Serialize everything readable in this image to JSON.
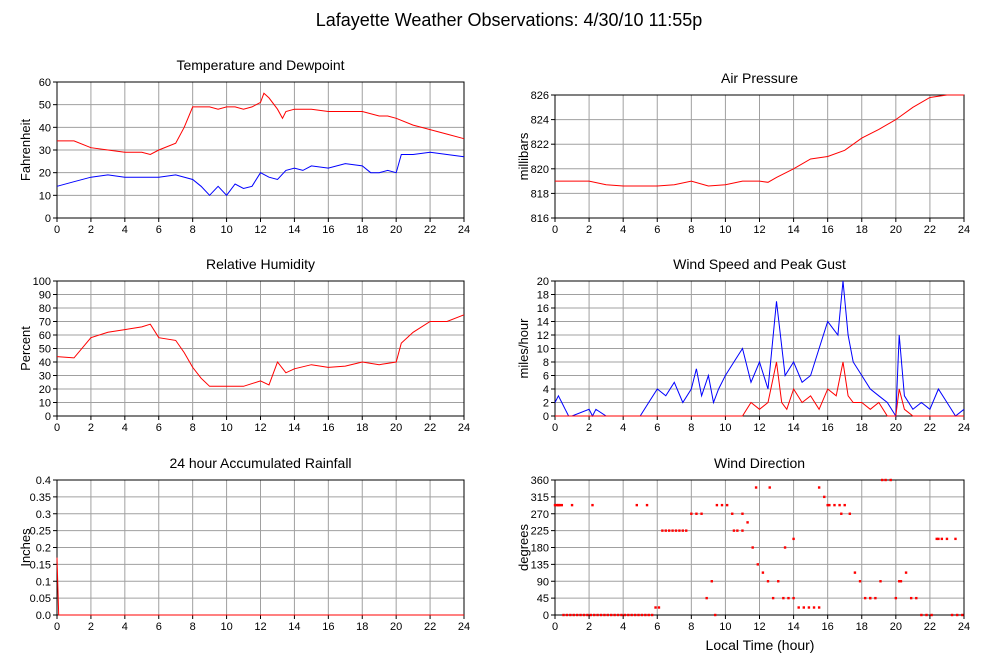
{
  "page": {
    "title": "Lafayette Weather Observations: 4/30/10 11:55p",
    "xlabel": "Local Time (hour)"
  },
  "colors": {
    "red": "#ff0000",
    "blue": "#0000ff",
    "grid": "#a0a0a0",
    "axis": "#000000"
  },
  "chart_data": [
    {
      "type": "line",
      "title": "Temperature and Dewpoint",
      "ylabel": "Fahrenheit",
      "xlim": [
        0,
        24
      ],
      "ylim": [
        0,
        60
      ],
      "xticks": [
        0,
        2,
        4,
        6,
        8,
        10,
        12,
        14,
        16,
        18,
        20,
        22,
        24
      ],
      "yticks": [
        0,
        10,
        20,
        30,
        40,
        50,
        60
      ],
      "grid": true,
      "series": [
        {
          "color": "#ff0000",
          "x": [
            0,
            1,
            2,
            3,
            4,
            5,
            5.5,
            6,
            7,
            7.5,
            8,
            8.5,
            9,
            9.5,
            10,
            10.5,
            11,
            11.5,
            12,
            12.2,
            12.5,
            13,
            13.3,
            13.5,
            14,
            15,
            16,
            17,
            18,
            19,
            19.5,
            20,
            21,
            22,
            23,
            24
          ],
          "y": [
            34,
            34,
            31,
            30,
            29,
            29,
            28,
            30,
            33,
            40,
            49,
            49,
            49,
            48,
            49,
            49,
            48,
            49,
            51,
            55,
            53,
            48,
            44,
            47,
            48,
            48,
            47,
            47,
            47,
            45,
            45,
            44,
            41,
            39,
            37,
            35
          ]
        },
        {
          "color": "#0000ff",
          "x": [
            0,
            1,
            2,
            3,
            4,
            5,
            6,
            7,
            8,
            8.5,
            9,
            9.5,
            10,
            10.5,
            11,
            11.5,
            12,
            12.5,
            13,
            13.5,
            14,
            14.5,
            15,
            16,
            17,
            18,
            18.5,
            19,
            19.5,
            20,
            20.3,
            21,
            22,
            23,
            24
          ],
          "y": [
            14,
            16,
            18,
            19,
            18,
            18,
            18,
            19,
            17,
            14,
            10,
            14,
            10,
            15,
            13,
            14,
            20,
            18,
            17,
            21,
            22,
            21,
            23,
            22,
            24,
            23,
            20,
            20,
            21,
            20,
            28,
            28,
            29,
            28,
            27
          ]
        }
      ]
    },
    {
      "type": "line",
      "title": "Air Pressure",
      "ylabel": "millibars",
      "xlim": [
        0,
        24
      ],
      "ylim": [
        816,
        826
      ],
      "xticks": [
        0,
        2,
        4,
        6,
        8,
        10,
        12,
        14,
        16,
        18,
        20,
        22,
        24
      ],
      "yticks": [
        816,
        818,
        820,
        822,
        824,
        826
      ],
      "grid": true,
      "series": [
        {
          "color": "#ff0000",
          "x": [
            0,
            2,
            3,
            4,
            6,
            7,
            8,
            9,
            10,
            11,
            12,
            12.5,
            13,
            14,
            15,
            16,
            17,
            18,
            19,
            20,
            21,
            22,
            23,
            24
          ],
          "y": [
            819,
            819,
            818.7,
            818.6,
            818.6,
            818.7,
            819,
            818.6,
            818.7,
            819,
            819,
            818.9,
            819.3,
            820,
            820.8,
            821,
            821.5,
            822.5,
            823.2,
            824,
            825,
            825.8,
            826,
            826
          ]
        }
      ]
    },
    {
      "type": "line",
      "title": "Relative Humidity",
      "ylabel": "Percent",
      "xlim": [
        0,
        24
      ],
      "ylim": [
        0,
        100
      ],
      "xticks": [
        0,
        2,
        4,
        6,
        8,
        10,
        12,
        14,
        16,
        18,
        20,
        22,
        24
      ],
      "yticks": [
        0,
        10,
        20,
        30,
        40,
        50,
        60,
        70,
        80,
        90,
        100
      ],
      "grid": true,
      "series": [
        {
          "color": "#ff0000",
          "x": [
            0,
            1,
            2,
            3,
            4,
            5,
            5.5,
            6,
            7,
            7.5,
            8,
            8.5,
            9,
            10,
            11,
            12,
            12.5,
            13,
            13.5,
            14,
            15,
            16,
            17,
            18,
            19,
            20,
            20.3,
            21,
            22,
            23,
            24
          ],
          "y": [
            44,
            43,
            58,
            62,
            64,
            66,
            68,
            58,
            56,
            47,
            36,
            28,
            22,
            22,
            22,
            26,
            23,
            40,
            32,
            35,
            38,
            36,
            37,
            40,
            38,
            40,
            54,
            62,
            70,
            70,
            75
          ]
        }
      ]
    },
    {
      "type": "line",
      "title": "Wind Speed and Peak Gust",
      "ylabel": "miles/hour",
      "xlim": [
        0,
        24
      ],
      "ylim": [
        0,
        20
      ],
      "xticks": [
        0,
        2,
        4,
        6,
        8,
        10,
        12,
        14,
        16,
        18,
        20,
        22,
        24
      ],
      "yticks": [
        0,
        2,
        4,
        6,
        8,
        10,
        12,
        14,
        16,
        18,
        20
      ],
      "grid": true,
      "series": [
        {
          "color": "#0000ff",
          "x": [
            0,
            0.2,
            0.4,
            0.6,
            0.8,
            1,
            2,
            2.2,
            2.4,
            3,
            4,
            5,
            5.5,
            6,
            6.5,
            7,
            7.5,
            8,
            8.3,
            8.6,
            9,
            9.3,
            9.6,
            10,
            10.5,
            11,
            11.5,
            12,
            12.5,
            13,
            13.5,
            14,
            14.5,
            15,
            15.5,
            16,
            16.3,
            16.6,
            16.9,
            17.2,
            17.5,
            18,
            18.5,
            19,
            19.5,
            20,
            20.2,
            20.5,
            21,
            21.5,
            22,
            22.5,
            23,
            23.5,
            24
          ],
          "y": [
            2,
            3,
            2,
            1,
            0,
            0,
            1,
            0,
            1,
            0,
            0,
            0,
            2,
            4,
            3,
            5,
            2,
            4,
            7,
            3,
            6,
            2,
            4,
            6,
            8,
            10,
            5,
            8,
            4,
            17,
            6,
            8,
            5,
            6,
            10,
            14,
            13,
            12,
            20,
            12,
            8,
            6,
            4,
            3,
            2,
            0,
            12,
            3,
            1,
            2,
            1,
            4,
            2,
            0,
            1
          ]
        },
        {
          "color": "#ff0000",
          "x": [
            0,
            11,
            11.5,
            12,
            12.5,
            13,
            13.3,
            13.6,
            14,
            14.5,
            15,
            15.5,
            16,
            16.5,
            16.9,
            17.2,
            17.5,
            18,
            18.5,
            19,
            19.5,
            20,
            20.2,
            20.5,
            21,
            24
          ],
          "y": [
            0,
            0,
            2,
            1,
            2,
            8,
            2,
            1,
            4,
            2,
            3,
            1,
            4,
            3,
            8,
            3,
            2,
            2,
            1,
            2,
            0,
            0,
            4,
            1,
            0,
            0
          ]
        }
      ]
    },
    {
      "type": "line",
      "title": "24 hour Accumulated Rainfall",
      "ylabel": "Inches",
      "xlim": [
        0,
        24
      ],
      "ylim": [
        0,
        0.4
      ],
      "xticks": [
        0,
        2,
        4,
        6,
        8,
        10,
        12,
        14,
        16,
        18,
        20,
        22,
        24
      ],
      "yticks": [
        "0.0",
        "0.05",
        "0.1",
        "0.15",
        "0.2",
        "0.25",
        "0.3",
        "0.35",
        "0.4"
      ],
      "ytickvals": [
        0,
        0.05,
        0.1,
        0.15,
        0.2,
        0.25,
        0.3,
        0.35,
        0.4
      ],
      "grid": true,
      "series": [
        {
          "color": "#ff0000",
          "x": [
            0,
            0.1,
            24
          ],
          "y": [
            0.17,
            0,
            0
          ]
        }
      ]
    },
    {
      "type": "scatter",
      "title": "Wind Direction",
      "ylabel": "degrees",
      "xlim": [
        0,
        24
      ],
      "ylim": [
        0,
        360
      ],
      "xticks": [
        0,
        2,
        4,
        6,
        8,
        10,
        12,
        14,
        16,
        18,
        20,
        22,
        24
      ],
      "yticks": [
        0,
        45,
        90,
        135,
        180,
        225,
        270,
        315,
        360
      ],
      "grid": true,
      "series": [
        {
          "color": "#ff0000",
          "x": [
            0,
            0.1,
            0.2,
            0.3,
            0.4,
            0.5,
            0.7,
            0.9,
            1.1,
            1.3,
            1.5,
            1.7,
            1.9,
            2.1,
            2.3,
            2.5,
            2.7,
            2.9,
            3.1,
            3.3,
            3.5,
            3.7,
            3.9,
            4.1,
            4.3,
            4.5,
            4.7,
            4.9,
            5.1,
            5.3,
            5.5,
            5.7,
            5.9,
            6.1,
            6.3,
            6.5,
            6.7,
            6.9,
            7.1,
            7.3,
            7.5,
            7.7,
            8.0,
            8.3,
            8.6,
            8.9,
            9.2,
            9.5,
            9.8,
            10.1,
            10.4,
            10.7,
            11.0,
            11.3,
            11.6,
            11.9,
            12.2,
            12.5,
            12.8,
            13.1,
            13.4,
            13.7,
            14.0,
            14.3,
            14.6,
            14.9,
            15.2,
            15.5,
            15.8,
            16.1,
            16.4,
            16.7,
            17.0,
            17.3,
            17.6,
            17.9,
            18.2,
            18.5,
            18.8,
            19.1,
            19.4,
            19.7,
            20.0,
            20.3,
            20.6,
            20.9,
            21.2,
            21.5,
            21.8,
            22.1,
            22.4,
            22.7,
            23.0,
            23.3,
            23.6,
            23.9,
            0.2,
            1.0,
            2.2,
            4.8,
            5.4,
            9.4,
            10.5,
            11.0,
            11.8,
            12.6,
            13.5,
            14.0,
            15.5,
            16.0,
            16.8,
            18.5,
            19.2,
            20.2,
            22.5,
            23.5
          ],
          "y": [
            293,
            293,
            293,
            293,
            293,
            0,
            0,
            0,
            0,
            0,
            0,
            0,
            0,
            0,
            0,
            0,
            0,
            0,
            0,
            0,
            0,
            0,
            0,
            0,
            0,
            0,
            0,
            0,
            0,
            0,
            0,
            0,
            20,
            20,
            225,
            225,
            225,
            225,
            225,
            225,
            225,
            225,
            270,
            270,
            270,
            45,
            90,
            293,
            293,
            293,
            270,
            225,
            225,
            247,
            180,
            135,
            113,
            90,
            45,
            90,
            45,
            45,
            45,
            20,
            20,
            20,
            20,
            20,
            315,
            293,
            293,
            293,
            293,
            270,
            113,
            90,
            45,
            45,
            45,
            90,
            360,
            360,
            45,
            90,
            113,
            45,
            45,
            0,
            0,
            0,
            203,
            203,
            203,
            0,
            0,
            0,
            293,
            293,
            293,
            293,
            293,
            0,
            225,
            270,
            340,
            340,
            180,
            203,
            340,
            293,
            270,
            45,
            360,
            90,
            203,
            203
          ]
        }
      ]
    }
  ]
}
